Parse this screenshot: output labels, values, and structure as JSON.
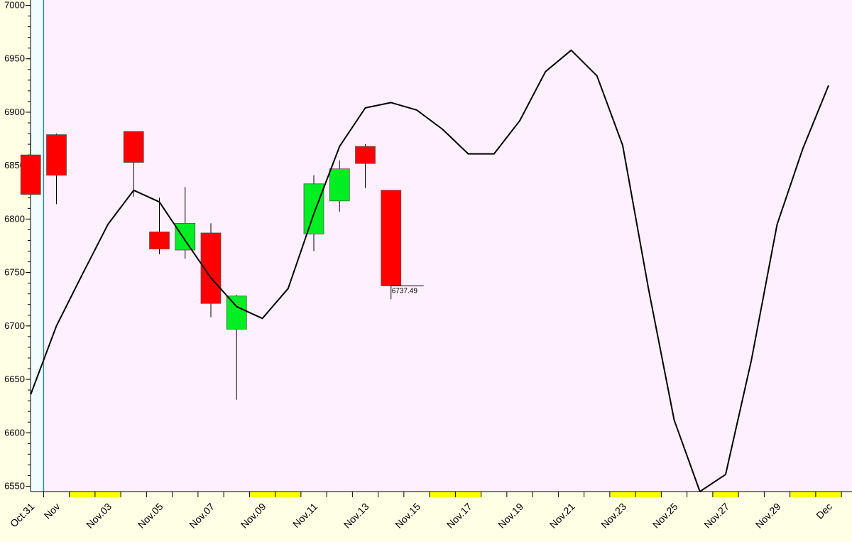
{
  "chart_data": {
    "type": "candlestick",
    "ylim": [
      6545,
      7005
    ],
    "yticks": [
      6550,
      6600,
      6650,
      6700,
      6750,
      6800,
      6850,
      6900,
      6950,
      7000
    ],
    "x_range": [
      "2024-10-30",
      "2024-12-01"
    ],
    "xticks": [
      {
        "date": "2024-10-31",
        "label": "Oct.31"
      },
      {
        "date": "2024-11-01",
        "label": "Nov"
      },
      {
        "date": "2024-11-03",
        "label": "Nov.03"
      },
      {
        "date": "2024-11-05",
        "label": "Nov.05"
      },
      {
        "date": "2024-11-07",
        "label": "Nov.07"
      },
      {
        "date": "2024-11-09",
        "label": "Nov.09"
      },
      {
        "date": "2024-11-11",
        "label": "Nov.11"
      },
      {
        "date": "2024-11-13",
        "label": "Nov.13"
      },
      {
        "date": "2024-11-15",
        "label": "Nov.15"
      },
      {
        "date": "2024-11-17",
        "label": "Nov.17"
      },
      {
        "date": "2024-11-19",
        "label": "Nov.19"
      },
      {
        "date": "2024-11-21",
        "label": "Nov.21"
      },
      {
        "date": "2024-11-23",
        "label": "Nov.23"
      },
      {
        "date": "2024-11-25",
        "label": "Nov.25"
      },
      {
        "date": "2024-11-27",
        "label": "Nov.27"
      },
      {
        "date": "2024-11-29",
        "label": "Nov.29"
      },
      {
        "date": "2024-12-01",
        "label": "Dec"
      }
    ],
    "candles": [
      {
        "date": "2024-10-31",
        "open": 6860,
        "high": 6880,
        "low": 6822,
        "close": 6823
      },
      {
        "date": "2024-11-01",
        "open": 6879,
        "high": 6880,
        "low": 6814,
        "close": 6841
      },
      {
        "date": "2024-11-04",
        "open": 6882,
        "high": 6882,
        "low": 6821,
        "close": 6853
      },
      {
        "date": "2024-11-05",
        "open": 6788,
        "high": 6820,
        "low": 6767,
        "close": 6772
      },
      {
        "date": "2024-11-06",
        "open": 6771,
        "high": 6830,
        "low": 6763,
        "close": 6796
      },
      {
        "date": "2024-11-07",
        "open": 6787,
        "high": 6796,
        "low": 6708,
        "close": 6721
      },
      {
        "date": "2024-11-08",
        "open": 6697,
        "high": 6729,
        "low": 6631,
        "close": 6728
      },
      {
        "date": "2024-11-11",
        "open": 6786,
        "high": 6841,
        "low": 6770,
        "close": 6833
      },
      {
        "date": "2024-11-12",
        "open": 6817,
        "high": 6855,
        "low": 6807,
        "close": 6847
      },
      {
        "date": "2024-11-13",
        "open": 6868,
        "high": 6870,
        "low": 6829,
        "close": 6852
      },
      {
        "date": "2024-11-14",
        "open": 6827,
        "high": 6827,
        "low": 6725,
        "close": 6737.49
      }
    ],
    "last_price": {
      "date": "2024-11-14",
      "value": 6737.49,
      "label": "6737.49"
    },
    "line_series": {
      "dates": [
        "2024-10-31",
        "2024-11-01",
        "2024-11-02",
        "2024-11-03",
        "2024-11-04",
        "2024-11-05",
        "2024-11-06",
        "2024-11-07",
        "2024-11-08",
        "2024-11-09",
        "2024-11-10",
        "2024-11-11",
        "2024-11-12",
        "2024-11-13",
        "2024-11-14",
        "2024-11-15",
        "2024-11-16",
        "2024-11-17",
        "2024-11-18",
        "2024-11-19",
        "2024-11-20",
        "2024-11-21",
        "2024-11-22",
        "2024-11-23",
        "2024-11-24",
        "2024-11-25",
        "2024-11-26",
        "2024-11-27",
        "2024-11-28",
        "2024-11-29",
        "2024-11-30",
        "2024-12-01"
      ],
      "values": [
        6636,
        6700,
        6748,
        6795,
        6827,
        6816,
        6780,
        6745,
        6718,
        6707,
        6735,
        6805,
        6868,
        6904,
        6909,
        6902,
        6884,
        6861,
        6861,
        6892,
        6938,
        6958,
        6934,
        6869,
        6735,
        6612,
        6545,
        6561,
        6668,
        6795,
        6866,
        6925
      ]
    },
    "highlight_band": {
      "start": "2024-10-30",
      "end": "2024-11-01"
    },
    "weekend_markers": [
      "2024-11-02",
      "2024-11-03",
      "2024-11-09",
      "2024-11-10",
      "2024-11-16",
      "2024-11-17",
      "2024-11-23",
      "2024-11-24",
      "2024-11-27",
      "2024-11-30",
      "2024-12-01"
    ],
    "colors": {
      "plot_bg": "#fff0ff",
      "highlight_bg": "#f0fcff",
      "page_bg": "#ffffe6",
      "up": "#00ee22",
      "down": "#ff0000",
      "line": "#000000",
      "vline": "#2e8b8b",
      "weekend": "#ffff00"
    }
  }
}
